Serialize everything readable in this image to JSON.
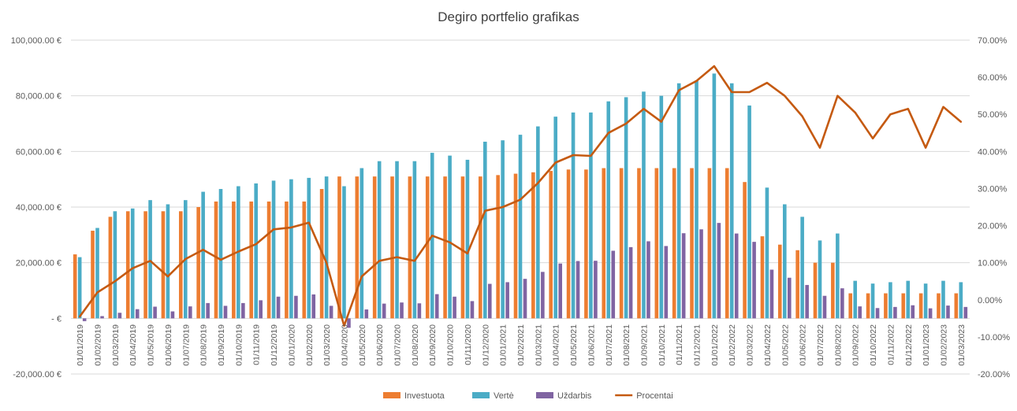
{
  "chart_data": {
    "type": "bar",
    "title": "Degiro portfelio grafikas",
    "categories": [
      "01/01/2019",
      "01/02/2019",
      "01/03/2019",
      "01/04/2019",
      "01/05/2019",
      "01/06/2019",
      "01/07/2019",
      "01/08/2019",
      "01/09/2019",
      "01/10/2019",
      "01/11/2019",
      "01/12/2019",
      "01/01/2020",
      "01/02/2020",
      "01/03/2020",
      "01/04/2020",
      "01/05/2020",
      "01/06/2020",
      "01/07/2020",
      "01/08/2020",
      "01/09/2020",
      "01/10/2020",
      "01/11/2020",
      "01/12/2020",
      "01/01/2021",
      "01/02/2021",
      "01/03/2021",
      "01/04/2021",
      "01/05/2021",
      "01/06/2021",
      "01/07/2021",
      "01/08/2021",
      "01/09/2021",
      "01/10/2021",
      "01/11/2021",
      "01/12/2021",
      "01/01/2022",
      "01/02/2022",
      "01/03/2022",
      "01/04/2022",
      "01/05/2022",
      "01/06/2022",
      "01/07/2022",
      "01/08/2022",
      "01/09/2022",
      "01/10/2022",
      "01/11/2022",
      "01/12/2022",
      "01/01/2023",
      "01/02/2023",
      "01/03/2023"
    ],
    "series": [
      {
        "name": "Investuota",
        "color": "#ED7D31",
        "axis": "left",
        "values": [
          23000,
          31500,
          36500,
          38500,
          38500,
          38500,
          38500,
          40000,
          42000,
          42000,
          42000,
          42000,
          42000,
          42000,
          46500,
          51000,
          51000,
          51000,
          51000,
          51000,
          51000,
          51000,
          51000,
          51000,
          51500,
          52000,
          52500,
          53000,
          53500,
          53500,
          54000,
          54000,
          54000,
          54000,
          54000,
          54000,
          54000,
          54000,
          49000,
          29500,
          26500,
          24500,
          20000,
          20000,
          9000,
          9000,
          9000,
          9000,
          9000,
          9000,
          9000
        ]
      },
      {
        "name": "Vertė",
        "color": "#4BACC6",
        "axis": "left",
        "values": [
          22000,
          32500,
          38500,
          39500,
          42500,
          41000,
          42500,
          45500,
          46500,
          47500,
          48500,
          49500,
          50000,
          50500,
          51000,
          47500,
          54000,
          56500,
          56500,
          56500,
          59500,
          58500,
          57000,
          63500,
          64000,
          66000,
          69000,
          72500,
          74000,
          74000,
          78000,
          79500,
          81500,
          80000,
          84500,
          85500,
          88000,
          84500,
          76500,
          47000,
          41000,
          36500,
          28000,
          30500,
          13500,
          12500,
          13000,
          13500,
          12500,
          13500,
          13000
        ]
      },
      {
        "name": "Uždarbis",
        "color": "#8064A2",
        "axis": "left",
        "values": [
          -1000,
          800,
          2000,
          3300,
          4200,
          2500,
          4300,
          5500,
          4500,
          5500,
          6500,
          7800,
          8100,
          8600,
          4500,
          -3400,
          3200,
          5300,
          5700,
          5400,
          8700,
          7800,
          6200,
          12400,
          13000,
          14200,
          16700,
          19700,
          20600,
          20700,
          24300,
          25600,
          27700,
          26000,
          30600,
          32000,
          34300,
          30500,
          27500,
          17500,
          14600,
          12000,
          8100,
          10800,
          4300,
          3700,
          4100,
          4700,
          3600,
          4600,
          4100
        ]
      },
      {
        "name": "Procentai",
        "color": "#C55A11",
        "axis": "right",
        "type": "line",
        "values": [
          -4.5,
          2.0,
          5.0,
          8.5,
          10.5,
          6.3,
          11.0,
          13.5,
          10.8,
          13.0,
          15.0,
          19.0,
          19.5,
          20.8,
          10.0,
          -7.0,
          6.3,
          10.5,
          11.5,
          10.5,
          17.3,
          15.5,
          12.5,
          24.0,
          25.0,
          27.0,
          31.5,
          37.0,
          39.0,
          38.8,
          45.0,
          47.5,
          51.5,
          48.0,
          56.5,
          59.0,
          63.0,
          56.0,
          56.0,
          58.5,
          55.0,
          49.5,
          41.0,
          55.0,
          50.5,
          43.5,
          50.0,
          51.5,
          41.0,
          52.0,
          48.0
        ]
      }
    ],
    "left_axis": {
      "min": -20000,
      "max": 100000,
      "step": 20000,
      "tick_labels": [
        "-20,000.00 €",
        "-   €",
        "20,000.00 €",
        "40,000.00 €",
        "60,000.00 €",
        "80,000.00 €",
        "100,000.00 €"
      ]
    },
    "right_axis": {
      "min": -20,
      "max": 70,
      "step": 10,
      "tick_labels": [
        "-20.00%",
        "-10.00%",
        "0.00%",
        "10.00%",
        "20.00%",
        "30.00%",
        "40.00%",
        "50.00%",
        "60.00%",
        "70.00%"
      ]
    },
    "grid": true,
    "legend_position": "bottom"
  }
}
